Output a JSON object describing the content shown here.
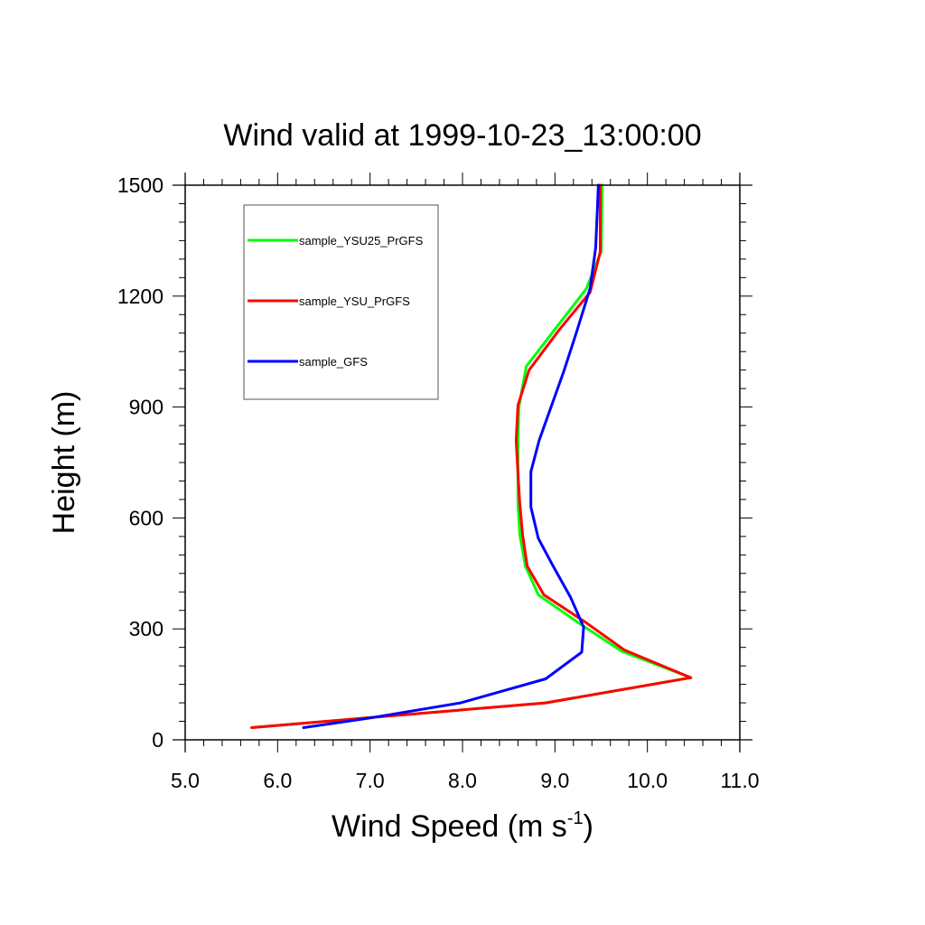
{
  "chart_data": {
    "type": "line",
    "title": "Wind valid at 1999-10-23_13:00:00",
    "xlabel": "Wind Speed (m s",
    "xlabel_sup": "-1",
    "xlabel_end": ")",
    "ylabel": "Height (m)",
    "xlim": [
      5.0,
      11.0
    ],
    "ylim": [
      0,
      1500
    ],
    "xticks": [
      5.0,
      6.0,
      7.0,
      8.0,
      9.0,
      10.0,
      11.0
    ],
    "xtick_labels": [
      "5.0",
      "6.0",
      "7.0",
      "8.0",
      "9.0",
      "10.0",
      "11.0"
    ],
    "yticks": [
      0,
      300,
      600,
      900,
      1200,
      1500
    ],
    "ytick_labels": [
      "0",
      "300",
      "600",
      "900",
      "1200",
      "1500"
    ],
    "grid": false,
    "legend_position": "top-left",
    "series": [
      {
        "name": "sample_YSU25_PrGFS",
        "color": "#00ff00",
        "points": [
          [
            5.72,
            33
          ],
          [
            6.9,
            58
          ],
          [
            8.9,
            100
          ],
          [
            10.47,
            168
          ],
          [
            9.72,
            240
          ],
          [
            9.28,
            312
          ],
          [
            8.82,
            392
          ],
          [
            8.68,
            470
          ],
          [
            8.62,
            555
          ],
          [
            8.6,
            640
          ],
          [
            8.6,
            720
          ],
          [
            8.6,
            810
          ],
          [
            8.61,
            900
          ],
          [
            8.69,
            1010
          ],
          [
            9.0,
            1110
          ],
          [
            9.34,
            1220
          ],
          [
            9.5,
            1320
          ],
          [
            9.51,
            1500
          ]
        ]
      },
      {
        "name": "sample_YSU_PrGFS",
        "color": "#ff0000",
        "points": [
          [
            5.72,
            33
          ],
          [
            6.9,
            58
          ],
          [
            8.9,
            100
          ],
          [
            10.47,
            168
          ],
          [
            9.75,
            243
          ],
          [
            9.33,
            318
          ],
          [
            8.88,
            392
          ],
          [
            8.7,
            470
          ],
          [
            8.65,
            555
          ],
          [
            8.62,
            640
          ],
          [
            8.6,
            720
          ],
          [
            8.58,
            810
          ],
          [
            8.6,
            905
          ],
          [
            8.72,
            1000
          ],
          [
            9.05,
            1110
          ],
          [
            9.38,
            1210
          ],
          [
            9.49,
            1320
          ],
          [
            9.49,
            1500
          ]
        ]
      },
      {
        "name": "sample_GFS",
        "color": "#0000ff",
        "points": [
          [
            6.28,
            33
          ],
          [
            6.97,
            58
          ],
          [
            7.98,
            100
          ],
          [
            8.9,
            165
          ],
          [
            9.29,
            237
          ],
          [
            9.31,
            305
          ],
          [
            9.17,
            385
          ],
          [
            8.98,
            470
          ],
          [
            8.82,
            545
          ],
          [
            8.74,
            630
          ],
          [
            8.74,
            725
          ],
          [
            8.83,
            810
          ],
          [
            9.1,
            1000
          ],
          [
            9.23,
            1100
          ],
          [
            9.38,
            1220
          ],
          [
            9.44,
            1330
          ],
          [
            9.46,
            1440
          ],
          [
            9.47,
            1500
          ]
        ]
      }
    ]
  }
}
